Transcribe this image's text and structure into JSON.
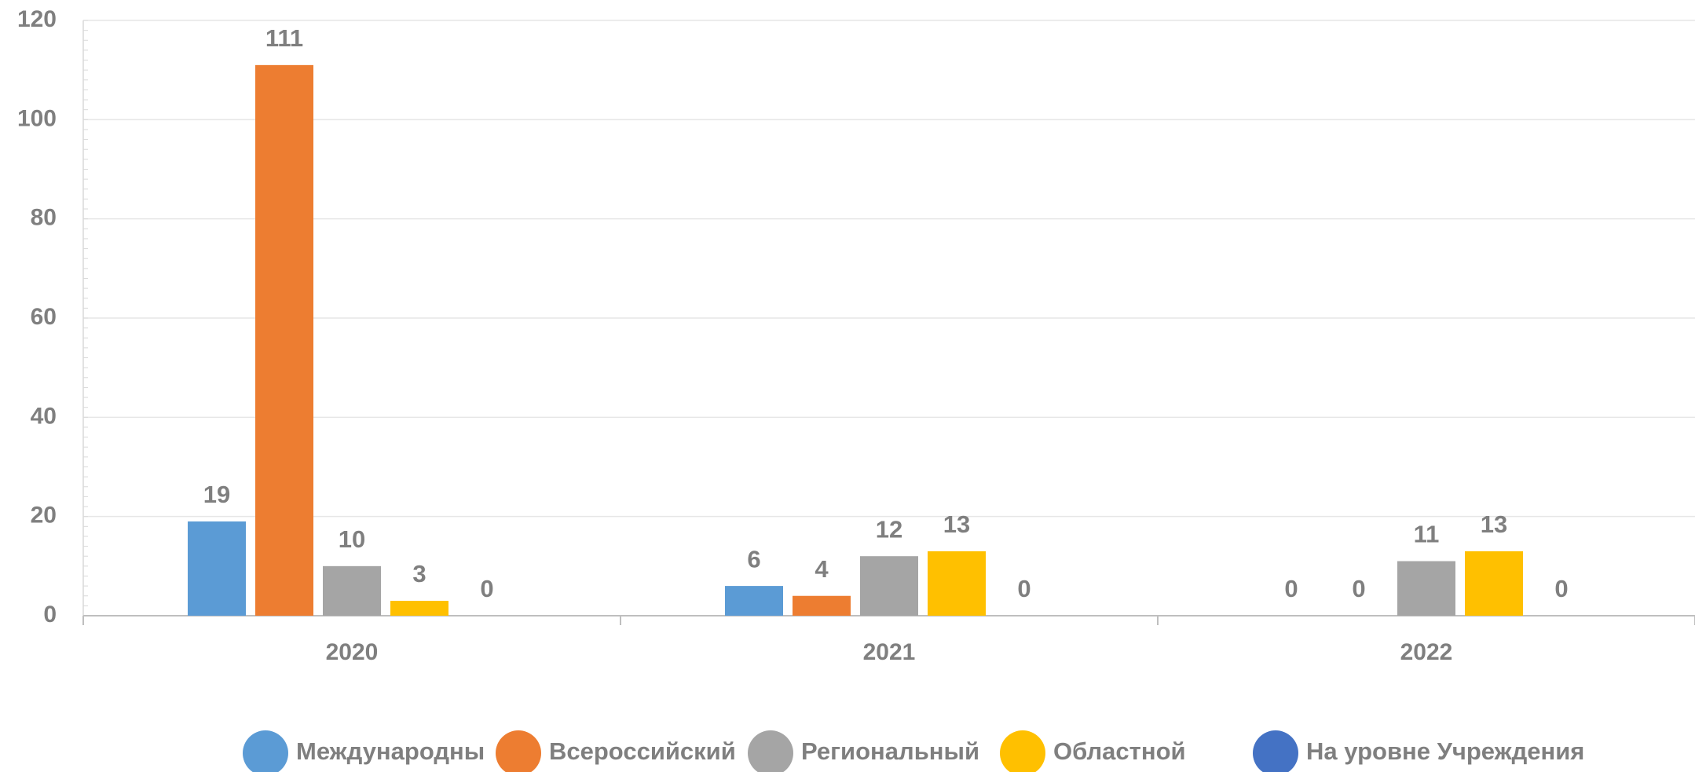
{
  "chart_data": {
    "type": "bar",
    "categories": [
      "2020",
      "2021",
      "2022"
    ],
    "series": [
      {
        "name": "Международны",
        "color": "#5b9bd5",
        "values": [
          19,
          6,
          0
        ]
      },
      {
        "name": "Всероссийский",
        "color": "#ed7d31",
        "values": [
          111,
          4,
          0
        ]
      },
      {
        "name": "Региональный",
        "color": "#a5a5a5",
        "values": [
          10,
          12,
          11
        ]
      },
      {
        "name": "Областной",
        "color": "#ffc000",
        "values": [
          3,
          13,
          13
        ]
      },
      {
        "name": "На уровне Учреждения",
        "color": "#4472c4",
        "values": [
          0,
          0,
          0
        ]
      }
    ],
    "ylim": [
      0,
      120
    ],
    "yticks": [
      0,
      20,
      40,
      60,
      80,
      100,
      120
    ],
    "grid": true,
    "legend": "bottom"
  }
}
